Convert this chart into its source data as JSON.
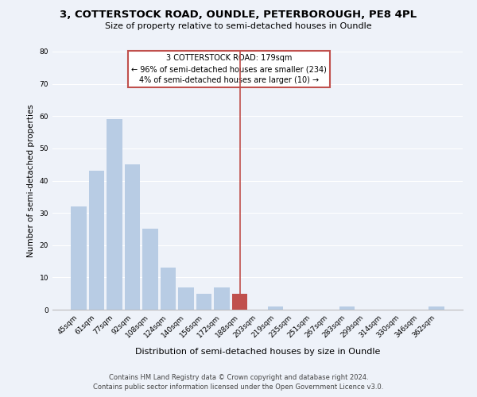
{
  "title": "3, COTTERSTOCK ROAD, OUNDLE, PETERBOROUGH, PE8 4PL",
  "subtitle": "Size of property relative to semi-detached houses in Oundle",
  "xlabel": "Distribution of semi-detached houses by size in Oundle",
  "ylabel": "Number of semi-detached properties",
  "categories": [
    "45sqm",
    "61sqm",
    "77sqm",
    "92sqm",
    "108sqm",
    "124sqm",
    "140sqm",
    "156sqm",
    "172sqm",
    "188sqm",
    "203sqm",
    "219sqm",
    "235sqm",
    "251sqm",
    "267sqm",
    "283sqm",
    "299sqm",
    "314sqm",
    "330sqm",
    "346sqm",
    "362sqm"
  ],
  "values": [
    32,
    43,
    59,
    45,
    25,
    13,
    7,
    5,
    7,
    5,
    0,
    1,
    0,
    0,
    0,
    1,
    0,
    0,
    0,
    0,
    1
  ],
  "bar_color": "#b8cce4",
  "highlight_bar_index": 9,
  "highlight_bar_color": "#c0504d",
  "vline_x": 9,
  "vline_color": "#c0504d",
  "annotation_title": "3 COTTERSTOCK ROAD: 179sqm",
  "annotation_line1": "← 96% of semi-detached houses are smaller (234)",
  "annotation_line2": "4% of semi-detached houses are larger (10) →",
  "annotation_box_edgecolor": "#c0504d",
  "ylim": [
    0,
    80
  ],
  "yticks": [
    0,
    10,
    20,
    30,
    40,
    50,
    60,
    70,
    80
  ],
  "footer1": "Contains HM Land Registry data © Crown copyright and database right 2024.",
  "footer2": "Contains public sector information licensed under the Open Government Licence v3.0.",
  "bg_color": "#eef2f9",
  "grid_color": "#ffffff",
  "title_fontsize": 9.5,
  "subtitle_fontsize": 8,
  "ylabel_fontsize": 7.5,
  "xlabel_fontsize": 8,
  "tick_fontsize": 6.5,
  "annotation_fontsize": 7,
  "footer_fontsize": 6
}
